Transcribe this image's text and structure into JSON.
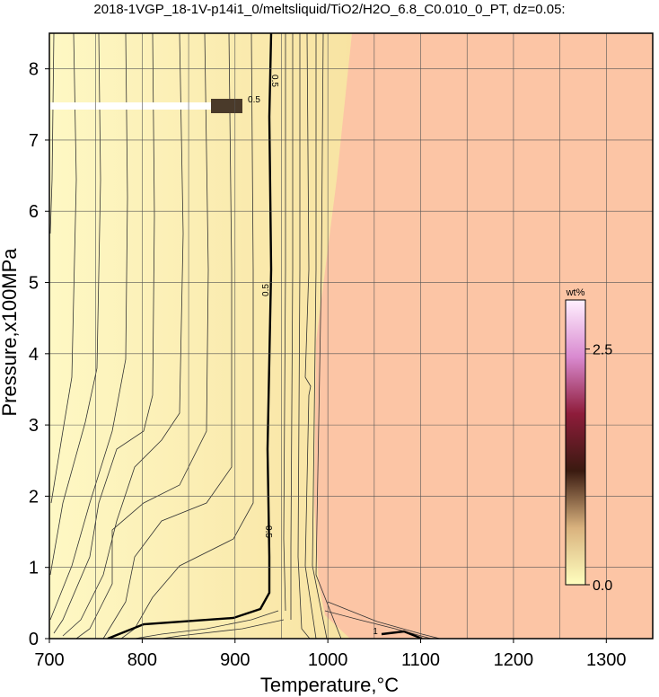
{
  "chart_data": {
    "type": "contour",
    "title": "2018-1VGP_18-1V-p14i1_0/meltsliquid/TiO2/H2O_6.8_C0.010_0_PT, dz=0.05:",
    "x_label": "Temperature,°C",
    "y_label": "Pressure,x100MPa",
    "xlim": [
      700,
      1350
    ],
    "ylim": [
      0,
      8.5
    ],
    "xticks": [
      700,
      800,
      900,
      1000,
      1100,
      1200,
      1300
    ],
    "xminor_grid": [
      750,
      850,
      950,
      1050,
      1150,
      1250
    ],
    "yticks": [
      0,
      1,
      2,
      3,
      4,
      5,
      6,
      7,
      8
    ],
    "grid": true,
    "colorbar": {
      "label": "wt%",
      "clim": [
        0,
        3.02
      ],
      "ticks": [
        {
          "value": 0,
          "label": "0.0"
        },
        {
          "value": 2.5,
          "label": "2.5"
        }
      ]
    },
    "contour_labels": [
      {
        "value": 0.5,
        "label": "0.5"
      },
      {
        "value": 1,
        "label": "1"
      }
    ]
  }
}
